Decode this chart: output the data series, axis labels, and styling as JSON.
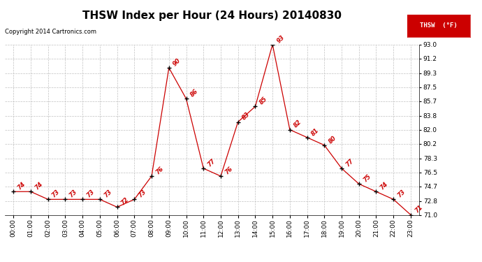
{
  "title": "THSW Index per Hour (24 Hours) 20140830",
  "copyright": "Copyright 2014 Cartronics.com",
  "legend_label": "THSW  (°F)",
  "hours": [
    0,
    1,
    2,
    3,
    4,
    5,
    6,
    7,
    8,
    9,
    10,
    11,
    12,
    13,
    14,
    15,
    16,
    17,
    18,
    19,
    20,
    21,
    22,
    23
  ],
  "values": [
    74,
    74,
    73,
    73,
    73,
    73,
    72,
    73,
    76,
    90,
    86,
    77,
    76,
    83,
    85,
    93,
    82,
    81,
    80,
    77,
    75,
    74,
    73,
    71
  ],
  "line_color": "#cc0000",
  "marker_color": "#000000",
  "bg_color": "#ffffff",
  "grid_color": "#c0c0c0",
  "ylim_min": 71.0,
  "ylim_max": 93.0,
  "yticks": [
    71.0,
    72.8,
    74.7,
    76.5,
    78.3,
    80.2,
    82.0,
    83.8,
    85.7,
    87.5,
    89.3,
    91.2,
    93.0
  ],
  "title_fontsize": 11,
  "label_fontsize": 6.5,
  "annotation_fontsize": 6,
  "legend_label_short": "THSW  (°F)"
}
